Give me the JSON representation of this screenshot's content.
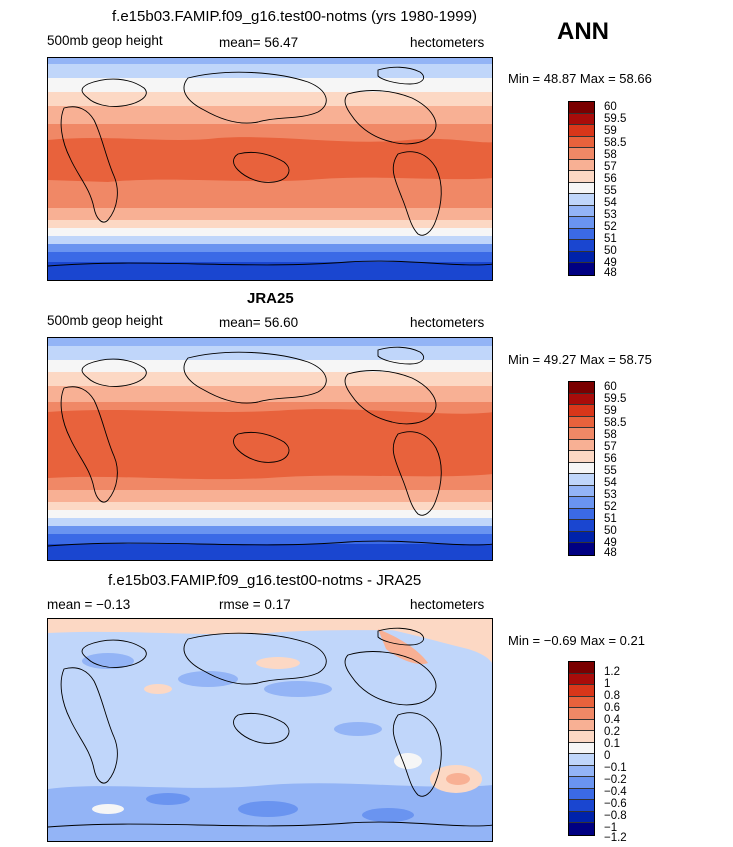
{
  "season": "ANN",
  "colors": {
    "levels13": [
      "#000082",
      "#0022aa",
      "#1a46d0",
      "#3b6ae6",
      "#6a94f0",
      "#93b4f6",
      "#c0d6fa",
      "#f6f6f6",
      "#fcd8c4",
      "#f8b094",
      "#f08866",
      "#e8623c",
      "#d8361a",
      "#a80c0a",
      "#7a0000"
    ],
    "coast": "#000000"
  },
  "panels": [
    {
      "title": "f.e15b03.FAMIP.f09_g16.test00-notms (yrs 1980-1999)",
      "left_label": "500mb geop height",
      "mid_label": "mean=  56.47",
      "units": "hectometers",
      "min_max": "Min =  48.87 Max =  58.66",
      "colorbar_labels": [
        "60",
        "59.5",
        "59",
        "58.5",
        "58",
        "57",
        "56",
        "55",
        "54",
        "53",
        "52",
        "51",
        "50",
        "49",
        "48"
      ]
    },
    {
      "title": "JRA25",
      "left_label": "500mb geop height",
      "mid_label": "mean=  56.60",
      "units": "hectometers",
      "min_max": "Min =  49.27 Max =  58.75",
      "colorbar_labels": [
        "60",
        "59.5",
        "59",
        "58.5",
        "58",
        "57",
        "56",
        "55",
        "54",
        "53",
        "52",
        "51",
        "50",
        "49",
        "48"
      ]
    },
    {
      "title": "f.e15b03.FAMIP.f09_g16.test00-notms - JRA25",
      "left_label": "mean =  −0.13",
      "mid_label": "rmse =   0.17",
      "units": "hectometers",
      "min_max": "Min =  −0.69 Max =   0.21",
      "colorbar_labels": [
        "1.2",
        "1",
        "0.8",
        "0.6",
        "0.4",
        "0.2",
        "0.1",
        "0",
        "−0.1",
        "−0.2",
        "−0.4",
        "−0.6",
        "−0.8",
        "−1",
        "−1.2"
      ]
    }
  ]
}
